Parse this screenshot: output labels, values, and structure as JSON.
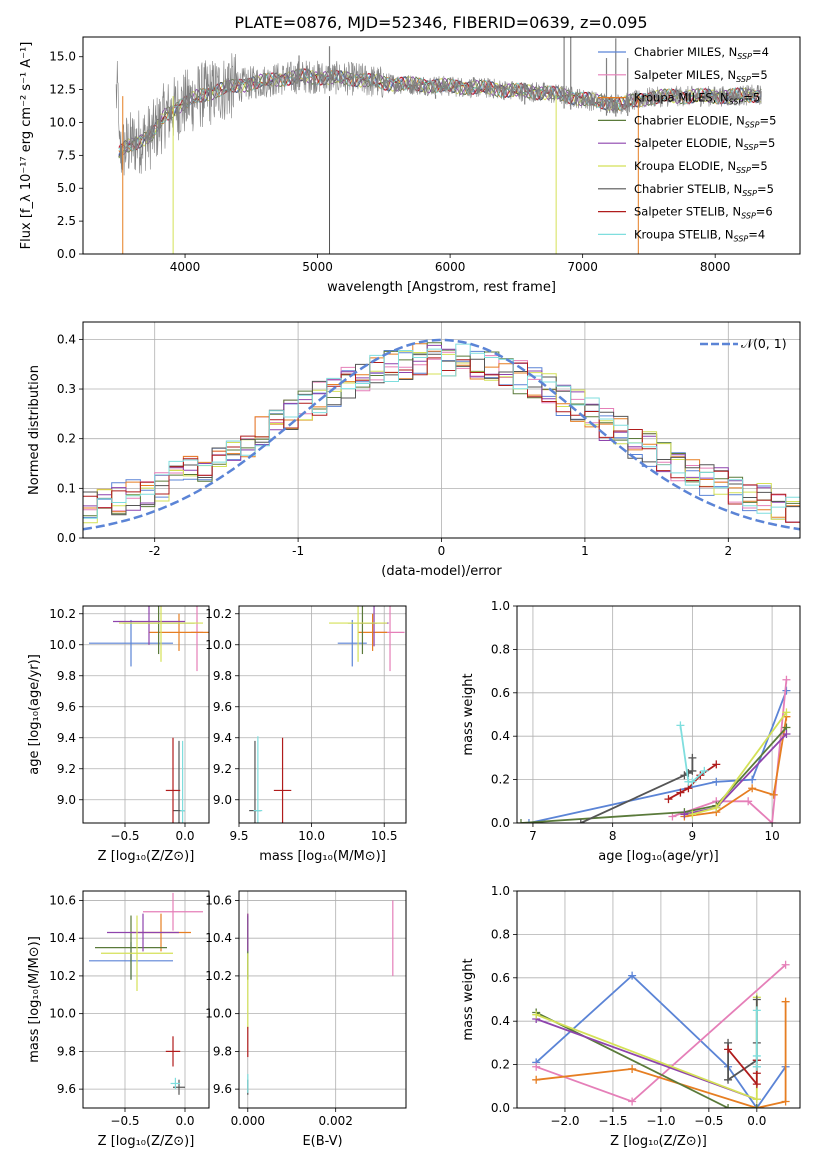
{
  "figure_title": "PLATE=0876, MJD=52346, FIBERID=0639, z=0.095",
  "colors": {
    "Chabrier MILES": "#5b84d6",
    "Salpeter MILES": "#e57fb8",
    "Kroupa MILES": "#e67e22",
    "Chabrier ELODIE": "#5a7a3a",
    "Salpeter ELODIE": "#8e44ad",
    "Kroupa ELODIE": "#d4e157",
    "Chabrier STELIB": "#555555",
    "Salpeter STELIB": "#b01c1c",
    "Kroupa STELIB": "#7fdede",
    "data": "#808080",
    "normal": "#5b84d6",
    "grid": "#b0b0b0"
  },
  "chart_data": [
    {
      "id": "spectrum",
      "type": "line",
      "xlabel": "wavelength [Angstrom, rest frame]",
      "ylabel": "Flux [f_λ 10⁻¹⁷ erg cm⁻² s⁻¹ A⁻¹]",
      "xlim": [
        3230,
        8640
      ],
      "ylim": [
        0,
        16.5
      ],
      "xticks": [
        4000,
        5000,
        6000,
        7000,
        8000
      ],
      "yticks": [
        0.0,
        2.5,
        5.0,
        7.5,
        10.0,
        12.5,
        15.0
      ],
      "grid": false,
      "legend_position": "right",
      "legend": [
        {
          "label": "Chabrier MILES, N",
          "sub": "SSP",
          "tail": "=4",
          "key": "Chabrier MILES"
        },
        {
          "label": "Salpeter MILES, N",
          "sub": "SSP",
          "tail": "=5",
          "key": "Salpeter MILES"
        },
        {
          "label": "Kroupa MILES, N",
          "sub": "SSP",
          "tail": "=5",
          "key": "Kroupa MILES"
        },
        {
          "label": "Chabrier ELODIE, N",
          "sub": "SSP",
          "tail": "=5",
          "key": "Chabrier ELODIE"
        },
        {
          "label": "Salpeter ELODIE, N",
          "sub": "SSP",
          "tail": "=5",
          "key": "Salpeter ELODIE"
        },
        {
          "label": "Kroupa ELODIE, N",
          "sub": "SSP",
          "tail": "=5",
          "key": "Kroupa ELODIE"
        },
        {
          "label": "Chabrier STELIB, N",
          "sub": "SSP",
          "tail": "=5",
          "key": "Chabrier STELIB"
        },
        {
          "label": "Salpeter STELIB, N",
          "sub": "SSP",
          "tail": "=6",
          "key": "Salpeter STELIB"
        },
        {
          "label": "Kroupa STELIB, N",
          "sub": "SSP",
          "tail": "=4",
          "key": "Kroupa STELIB"
        }
      ],
      "continuum": [
        [
          3500,
          7.6
        ],
        [
          3560,
          8.2
        ],
        [
          3650,
          8.6
        ],
        [
          3750,
          9.0
        ],
        [
          3850,
          10.6
        ],
        [
          3950,
          11.2
        ],
        [
          4100,
          12.0
        ],
        [
          4300,
          12.6
        ],
        [
          4500,
          13.0
        ],
        [
          4700,
          13.3
        ],
        [
          4900,
          13.5
        ],
        [
          5100,
          13.4
        ],
        [
          5300,
          13.3
        ],
        [
          5500,
          13.0
        ],
        [
          5700,
          12.9
        ],
        [
          5900,
          12.8
        ],
        [
          6100,
          12.7
        ],
        [
          6300,
          12.6
        ],
        [
          6500,
          12.4
        ],
        [
          6700,
          12.3
        ],
        [
          6900,
          12.0
        ],
        [
          7100,
          11.6
        ],
        [
          7300,
          11.4
        ],
        [
          7500,
          11.9
        ],
        [
          7700,
          12.0
        ],
        [
          7900,
          12.0
        ],
        [
          8100,
          12.0
        ],
        [
          8300,
          12.1
        ]
      ],
      "spikes": [
        [
          4330,
          14.5
        ],
        [
          4860,
          15.1
        ],
        [
          5090,
          15.8
        ],
        [
          5890,
          12.1
        ],
        [
          6563,
          13.0
        ],
        [
          6860,
          16.5
        ],
        [
          6910,
          16.5
        ],
        [
          7180,
          14.9
        ],
        [
          7250,
          16.4
        ],
        [
          7340,
          14.9
        ]
      ]
    },
    {
      "id": "residuals",
      "type": "histogram",
      "xlabel": "(data-model)/error",
      "ylabel": "Normed distribution",
      "xlim": [
        -2.5,
        2.5
      ],
      "ylim": [
        0,
        0.435
      ],
      "xticks": [
        -2,
        -1,
        0,
        1,
        2
      ],
      "yticks": [
        0.0,
        0.1,
        0.2,
        0.3,
        0.4
      ],
      "grid": true,
      "bins": 50,
      "legend_label": "𝒩(0, 1)"
    },
    {
      "id": "age_vs_Z",
      "type": "scatter",
      "xlabel": "Z [log₁₀(Z/Z⊙)]",
      "ylabel": "age  [log₁₀(age/yr)]",
      "xlim": [
        -0.85,
        0.2
      ],
      "ylim": [
        8.85,
        10.25
      ],
      "xticks": [
        -0.5,
        0.0
      ],
      "yticks": [
        9.0,
        9.2,
        9.4,
        9.6,
        9.8,
        10.0,
        10.2
      ],
      "grid": true,
      "points": [
        {
          "key": "Chabrier MILES",
          "x": -0.45,
          "y": 10.01,
          "xerr": 0.35,
          "yerr": 0.15
        },
        {
          "key": "Salpeter MILES",
          "x": 0.1,
          "y": 10.08,
          "xerr": 0.05,
          "yerr": 0.25
        },
        {
          "key": "Kroupa MILES",
          "x": -0.05,
          "y": 10.08,
          "xerr": 0.25,
          "yerr": 0.12
        },
        {
          "key": "Chabrier ELODIE",
          "x": -0.22,
          "y": 10.14,
          "xerr": 0.3,
          "yerr": 0.2
        },
        {
          "key": "Salpeter ELODIE",
          "x": -0.3,
          "y": 10.15,
          "xerr": 0.3,
          "yerr": 0.15
        },
        {
          "key": "Kroupa ELODIE",
          "x": -0.2,
          "y": 10.14,
          "xerr": 0.35,
          "yerr": 0.25
        },
        {
          "key": "Chabrier STELIB",
          "x": -0.05,
          "y": 8.93,
          "xerr": 0.05,
          "yerr": 0.45
        },
        {
          "key": "Salpeter STELIB",
          "x": -0.1,
          "y": 9.06,
          "xerr": 0.06,
          "yerr": 0.34
        },
        {
          "key": "Kroupa STELIB",
          "x": -0.02,
          "y": 8.93,
          "xerr": 0.02,
          "yerr": 0.45
        }
      ]
    },
    {
      "id": "age_vs_mass",
      "type": "scatter",
      "xlabel": "mass [log₁₀(M/M⊙)]",
      "ylabel": "",
      "xlim": [
        9.5,
        10.65
      ],
      "ylim": [
        8.85,
        10.25
      ],
      "xticks": [
        9.5,
        10.0,
        10.5
      ],
      "yticks": [
        9.0,
        9.2,
        9.4,
        9.6,
        9.8,
        10.0,
        10.2
      ],
      "grid": true,
      "points": [
        {
          "key": "Chabrier MILES",
          "x": 10.28,
          "y": 10.01,
          "xerr": 0.1,
          "yerr": 0.15
        },
        {
          "key": "Salpeter MILES",
          "x": 10.54,
          "y": 10.08,
          "xerr": 0.1,
          "yerr": 0.25
        },
        {
          "key": "Kroupa MILES",
          "x": 10.42,
          "y": 10.08,
          "xerr": 0.1,
          "yerr": 0.12
        },
        {
          "key": "Chabrier ELODIE",
          "x": 10.35,
          "y": 10.14,
          "xerr": 0.1,
          "yerr": 0.2
        },
        {
          "key": "Salpeter ELODIE",
          "x": 10.43,
          "y": 10.14,
          "xerr": 0.1,
          "yerr": 0.15
        },
        {
          "key": "Kroupa ELODIE",
          "x": 10.32,
          "y": 10.14,
          "xerr": 0.2,
          "yerr": 0.25
        },
        {
          "key": "Chabrier STELIB",
          "x": 9.61,
          "y": 8.93,
          "xerr": 0.04,
          "yerr": 0.45
        },
        {
          "key": "Salpeter STELIB",
          "x": 9.8,
          "y": 9.06,
          "xerr": 0.06,
          "yerr": 0.34
        },
        {
          "key": "Kroupa STELIB",
          "x": 9.63,
          "y": 8.93,
          "xerr": 0.03,
          "yerr": 0.48
        }
      ]
    },
    {
      "id": "weight_vs_age",
      "type": "line",
      "xlabel": "age  [log₁₀(age/yr)]",
      "ylabel": "mass weight",
      "xlim": [
        6.8,
        10.35
      ],
      "ylim": [
        0,
        1.0
      ],
      "xticks": [
        7,
        8,
        9,
        10
      ],
      "yticks": [
        0.0,
        0.2,
        0.4,
        0.6,
        0.8,
        1.0
      ],
      "grid": true,
      "series": [
        {
          "key": "Chabrier MILES",
          "x": [
            6.95,
            9.3,
            9.75,
            10.18
          ],
          "y": [
            0.0,
            0.19,
            0.2,
            0.61
          ]
        },
        {
          "key": "Salpeter MILES",
          "x": [
            8.75,
            9.3,
            9.7,
            10.0,
            10.18
          ],
          "y": [
            0.03,
            0.1,
            0.1,
            0.0,
            0.66
          ]
        },
        {
          "key": "Kroupa MILES",
          "x": [
            8.9,
            9.3,
            9.75,
            10.02,
            10.18
          ],
          "y": [
            0.03,
            0.05,
            0.16,
            0.13,
            0.49
          ]
        },
        {
          "key": "Chabrier ELODIE",
          "x": [
            6.85,
            8.9,
            9.3,
            10.18
          ],
          "y": [
            0.0,
            0.05,
            0.08,
            0.44
          ]
        },
        {
          "key": "Salpeter ELODIE",
          "x": [
            8.9,
            9.3,
            10.18
          ],
          "y": [
            0.04,
            0.07,
            0.41
          ]
        },
        {
          "key": "Kroupa ELODIE",
          "x": [
            9.0,
            9.3,
            10.18
          ],
          "y": [
            0.04,
            0.07,
            0.51
          ]
        },
        {
          "key": "Chabrier STELIB",
          "x": [
            7.6,
            8.9,
            8.95,
            9.0,
            9.0
          ],
          "y": [
            0.0,
            0.22,
            0.23,
            0.24,
            0.3
          ]
        },
        {
          "key": "Salpeter STELIB",
          "x": [
            8.7,
            8.85,
            8.95,
            9.1,
            9.3
          ],
          "y": [
            0.11,
            0.14,
            0.16,
            0.22,
            0.27
          ]
        },
        {
          "key": "Kroupa STELIB",
          "x": [
            8.85,
            8.95,
            9.0,
            9.15
          ],
          "y": [
            0.45,
            0.19,
            0.19,
            0.24
          ]
        }
      ]
    },
    {
      "id": "mass_vs_Z",
      "type": "scatter",
      "xlabel": "Z [log₁₀(Z/Z⊙)]",
      "ylabel": "mass [log₁₀(M/M⊙)]",
      "xlim": [
        -0.85,
        0.2
      ],
      "ylim": [
        9.5,
        10.65
      ],
      "xticks": [
        -0.5,
        0.0
      ],
      "yticks": [
        9.6,
        9.8,
        10.0,
        10.2,
        10.4,
        10.6
      ],
      "grid": true,
      "points": [
        {
          "key": "Chabrier MILES",
          "x": -0.45,
          "y": 10.28,
          "xerr": 0.35,
          "yerr": 0.1
        },
        {
          "key": "Salpeter MILES",
          "x": -0.1,
          "y": 10.54,
          "xerr": 0.25,
          "yerr": 0.1
        },
        {
          "key": "Kroupa MILES",
          "x": -0.2,
          "y": 10.43,
          "xerr": 0.25,
          "yerr": 0.1
        },
        {
          "key": "Chabrier ELODIE",
          "x": -0.45,
          "y": 10.35,
          "xerr": 0.3,
          "yerr": 0.17
        },
        {
          "key": "Salpeter ELODIE",
          "x": -0.35,
          "y": 10.43,
          "xerr": 0.3,
          "yerr": 0.1
        },
        {
          "key": "Kroupa ELODIE",
          "x": -0.4,
          "y": 10.32,
          "xerr": 0.3,
          "yerr": 0.2
        },
        {
          "key": "Chabrier STELIB",
          "x": -0.05,
          "y": 9.61,
          "xerr": 0.05,
          "yerr": 0.04
        },
        {
          "key": "Salpeter STELIB",
          "x": -0.1,
          "y": 9.8,
          "xerr": 0.06,
          "yerr": 0.08
        },
        {
          "key": "Kroupa STELIB",
          "x": -0.08,
          "y": 9.63,
          "xerr": 0.04,
          "yerr": 0.03
        }
      ]
    },
    {
      "id": "mass_vs_EBV",
      "type": "scatter",
      "xlabel": "E(B-V)",
      "ylabel": "",
      "xlim": [
        -0.0002,
        0.0036
      ],
      "ylim": [
        9.5,
        10.65
      ],
      "xticks": [
        0.0,
        0.002
      ],
      "yticks": [
        9.6,
        9.8,
        10.0,
        10.2,
        10.4,
        10.6
      ],
      "grid": true,
      "points": [
        {
          "key": "Chabrier MILES",
          "x": 0.0,
          "y": 10.28,
          "xerr": 0.0,
          "yerr": 0.1
        },
        {
          "key": "Salpeter MILES",
          "x": 0.0033,
          "y": 10.4,
          "xerr": 0.0,
          "yerr": 0.2
        },
        {
          "key": "Kroupa MILES",
          "x": 0.0,
          "y": 10.43,
          "xerr": 0.0,
          "yerr": 0.1
        },
        {
          "key": "Chabrier ELODIE",
          "x": 0.0,
          "y": 10.35,
          "xerr": 0.0,
          "yerr": 0.17
        },
        {
          "key": "Salpeter ELODIE",
          "x": 0.0,
          "y": 10.43,
          "xerr": 0.0,
          "yerr": 0.1
        },
        {
          "key": "Kroupa ELODIE",
          "x": 0.0,
          "y": 10.12,
          "xerr": 0.0,
          "yerr": 0.2
        },
        {
          "key": "Chabrier STELIB",
          "x": 0.0,
          "y": 9.61,
          "xerr": 0.0,
          "yerr": 0.04
        },
        {
          "key": "Salpeter STELIB",
          "x": 0.0,
          "y": 9.85,
          "xerr": 0.0,
          "yerr": 0.08
        },
        {
          "key": "Kroupa STELIB",
          "x": 0.0,
          "y": 9.63,
          "xerr": 0.0,
          "yerr": 0.05
        }
      ]
    },
    {
      "id": "weight_vs_Z",
      "type": "line",
      "xlabel": "Z [log₁₀(Z/Z⊙)]",
      "ylabel": "mass weight",
      "xlim": [
        -2.5,
        0.45
      ],
      "ylim": [
        0,
        1.0
      ],
      "xticks": [
        -2.0,
        -1.5,
        -1.0,
        -0.5,
        0.0
      ],
      "yticks": [
        0.0,
        0.2,
        0.4,
        0.6,
        0.8,
        1.0
      ],
      "grid": true,
      "series": [
        {
          "key": "Chabrier MILES",
          "x": [
            -2.3,
            -1.3,
            -0.3,
            0.0,
            0.3
          ],
          "y": [
            0.21,
            0.61,
            0.19,
            0.0,
            0.19
          ]
        },
        {
          "key": "Salpeter MILES",
          "x": [
            -2.3,
            -1.3,
            0.3
          ],
          "y": [
            0.19,
            0.03,
            0.66
          ]
        },
        {
          "key": "Kroupa MILES",
          "x": [
            -2.3,
            -1.3,
            0.0,
            0.3,
            0.3
          ],
          "y": [
            0.13,
            0.18,
            0.0,
            0.03,
            0.49
          ]
        },
        {
          "key": "Chabrier ELODIE",
          "x": [
            -2.3,
            -0.3,
            0.0
          ],
          "y": [
            0.44,
            0.0,
            0.0
          ]
        },
        {
          "key": "Salpeter ELODIE",
          "x": [
            -2.3,
            0.0
          ],
          "y": [
            0.41,
            0.04
          ]
        },
        {
          "key": "Kroupa ELODIE",
          "x": [
            -2.3,
            0.0,
            0.0
          ],
          "y": [
            0.43,
            0.04,
            0.51
          ]
        },
        {
          "key": "Chabrier STELIB",
          "x": [
            -0.3,
            -0.3,
            0.0,
            0.0,
            0.0
          ],
          "y": [
            0.3,
            0.13,
            0.22,
            0.3,
            0.5
          ]
        },
        {
          "key": "Salpeter STELIB",
          "x": [
            -0.3,
            0.0,
            0.0,
            0.0
          ],
          "y": [
            0.27,
            0.11,
            0.16,
            0.22
          ]
        },
        {
          "key": "Kroupa STELIB",
          "x": [
            0.0,
            0.0,
            0.0,
            0.0
          ],
          "y": [
            0.45,
            0.19,
            0.24,
            0.19
          ]
        }
      ]
    }
  ]
}
